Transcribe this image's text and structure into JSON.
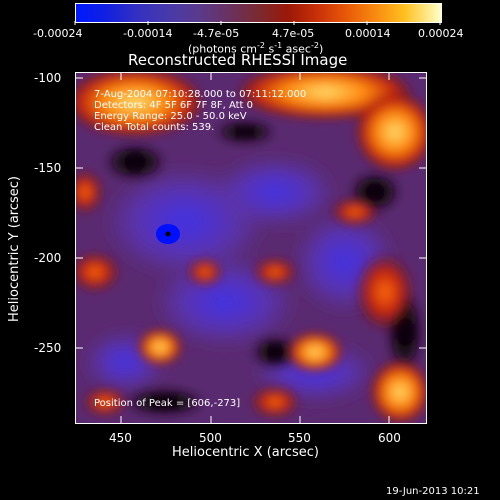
{
  "colorbar": {
    "tick_labels": [
      "-0.00024",
      "-0.00014",
      "-4.7e-05",
      "4.7e-05",
      "0.00014",
      "0.00024"
    ],
    "units_label": "(photons cm",
    "units_exp1": "-2",
    "units_mid": " s",
    "units_exp2": "-1",
    "units_mid2": " asec",
    "units_exp3": "-2",
    "units_end": ")",
    "range": [
      -0.00024,
      0.00024
    ]
  },
  "image": {
    "title": "Reconstructed RHESSI Image",
    "xlabel": "Heliocentric X (arcsec)",
    "ylabel": "Heliocentric Y (arcsec)",
    "x_ticks": [
      "450",
      "500",
      "550",
      "600"
    ],
    "y_ticks": [
      "-100",
      "-150",
      "-200",
      "-250"
    ],
    "xlim": [
      425,
      618
    ],
    "ylim": [
      -290,
      -97
    ],
    "info_lines": [
      "7-Aug-2004 07:10:28.000 to 07:11:12.000",
      "Detectors: 4F 5F 6F 7F 8F, Att 0",
      "Energy Range: 25.0 - 50.0 keV",
      "Clean    Total counts: 539."
    ],
    "peak_label": "Position of Peak = [606,-273]"
  },
  "footer": {
    "timestamp": "19-Jun-2013 10:21"
  },
  "colors": {
    "background": "#000000",
    "foreground": "#ffffff"
  }
}
